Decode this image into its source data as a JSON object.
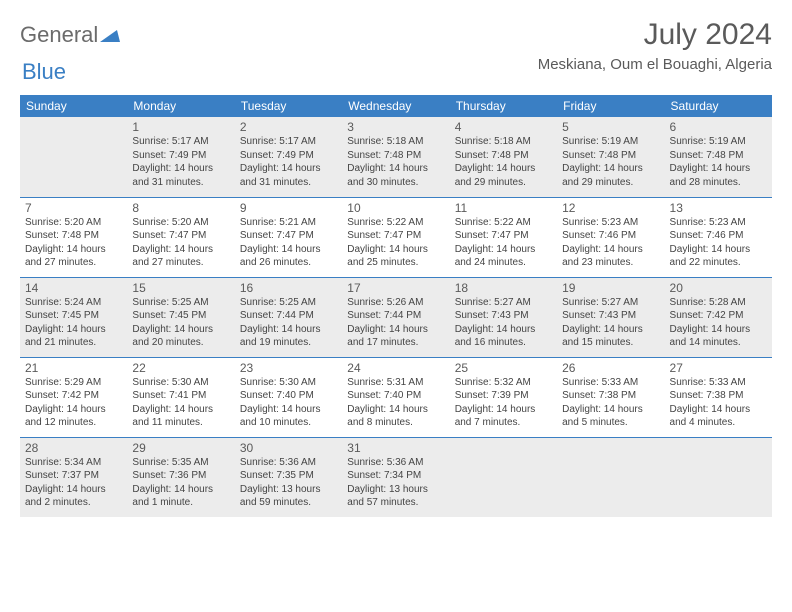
{
  "brand": {
    "part1": "General",
    "part2": "Blue"
  },
  "header": {
    "title": "July 2024",
    "location": "Meskiana, Oum el Bouaghi, Algeria"
  },
  "colors": {
    "accent": "#3a7fc4",
    "alt_bg": "#ececec",
    "text": "#444444"
  },
  "days_of_week": [
    "Sunday",
    "Monday",
    "Tuesday",
    "Wednesday",
    "Thursday",
    "Friday",
    "Saturday"
  ],
  "weeks": [
    [
      null,
      {
        "n": "1",
        "sr": "Sunrise: 5:17 AM",
        "ss": "Sunset: 7:49 PM",
        "d1": "Daylight: 14 hours",
        "d2": "and 31 minutes."
      },
      {
        "n": "2",
        "sr": "Sunrise: 5:17 AM",
        "ss": "Sunset: 7:49 PM",
        "d1": "Daylight: 14 hours",
        "d2": "and 31 minutes."
      },
      {
        "n": "3",
        "sr": "Sunrise: 5:18 AM",
        "ss": "Sunset: 7:48 PM",
        "d1": "Daylight: 14 hours",
        "d2": "and 30 minutes."
      },
      {
        "n": "4",
        "sr": "Sunrise: 5:18 AM",
        "ss": "Sunset: 7:48 PM",
        "d1": "Daylight: 14 hours",
        "d2": "and 29 minutes."
      },
      {
        "n": "5",
        "sr": "Sunrise: 5:19 AM",
        "ss": "Sunset: 7:48 PM",
        "d1": "Daylight: 14 hours",
        "d2": "and 29 minutes."
      },
      {
        "n": "6",
        "sr": "Sunrise: 5:19 AM",
        "ss": "Sunset: 7:48 PM",
        "d1": "Daylight: 14 hours",
        "d2": "and 28 minutes."
      }
    ],
    [
      {
        "n": "7",
        "sr": "Sunrise: 5:20 AM",
        "ss": "Sunset: 7:48 PM",
        "d1": "Daylight: 14 hours",
        "d2": "and 27 minutes."
      },
      {
        "n": "8",
        "sr": "Sunrise: 5:20 AM",
        "ss": "Sunset: 7:47 PM",
        "d1": "Daylight: 14 hours",
        "d2": "and 27 minutes."
      },
      {
        "n": "9",
        "sr": "Sunrise: 5:21 AM",
        "ss": "Sunset: 7:47 PM",
        "d1": "Daylight: 14 hours",
        "d2": "and 26 minutes."
      },
      {
        "n": "10",
        "sr": "Sunrise: 5:22 AM",
        "ss": "Sunset: 7:47 PM",
        "d1": "Daylight: 14 hours",
        "d2": "and 25 minutes."
      },
      {
        "n": "11",
        "sr": "Sunrise: 5:22 AM",
        "ss": "Sunset: 7:47 PM",
        "d1": "Daylight: 14 hours",
        "d2": "and 24 minutes."
      },
      {
        "n": "12",
        "sr": "Sunrise: 5:23 AM",
        "ss": "Sunset: 7:46 PM",
        "d1": "Daylight: 14 hours",
        "d2": "and 23 minutes."
      },
      {
        "n": "13",
        "sr": "Sunrise: 5:23 AM",
        "ss": "Sunset: 7:46 PM",
        "d1": "Daylight: 14 hours",
        "d2": "and 22 minutes."
      }
    ],
    [
      {
        "n": "14",
        "sr": "Sunrise: 5:24 AM",
        "ss": "Sunset: 7:45 PM",
        "d1": "Daylight: 14 hours",
        "d2": "and 21 minutes."
      },
      {
        "n": "15",
        "sr": "Sunrise: 5:25 AM",
        "ss": "Sunset: 7:45 PM",
        "d1": "Daylight: 14 hours",
        "d2": "and 20 minutes."
      },
      {
        "n": "16",
        "sr": "Sunrise: 5:25 AM",
        "ss": "Sunset: 7:44 PM",
        "d1": "Daylight: 14 hours",
        "d2": "and 19 minutes."
      },
      {
        "n": "17",
        "sr": "Sunrise: 5:26 AM",
        "ss": "Sunset: 7:44 PM",
        "d1": "Daylight: 14 hours",
        "d2": "and 17 minutes."
      },
      {
        "n": "18",
        "sr": "Sunrise: 5:27 AM",
        "ss": "Sunset: 7:43 PM",
        "d1": "Daylight: 14 hours",
        "d2": "and 16 minutes."
      },
      {
        "n": "19",
        "sr": "Sunrise: 5:27 AM",
        "ss": "Sunset: 7:43 PM",
        "d1": "Daylight: 14 hours",
        "d2": "and 15 minutes."
      },
      {
        "n": "20",
        "sr": "Sunrise: 5:28 AM",
        "ss": "Sunset: 7:42 PM",
        "d1": "Daylight: 14 hours",
        "d2": "and 14 minutes."
      }
    ],
    [
      {
        "n": "21",
        "sr": "Sunrise: 5:29 AM",
        "ss": "Sunset: 7:42 PM",
        "d1": "Daylight: 14 hours",
        "d2": "and 12 minutes."
      },
      {
        "n": "22",
        "sr": "Sunrise: 5:30 AM",
        "ss": "Sunset: 7:41 PM",
        "d1": "Daylight: 14 hours",
        "d2": "and 11 minutes."
      },
      {
        "n": "23",
        "sr": "Sunrise: 5:30 AM",
        "ss": "Sunset: 7:40 PM",
        "d1": "Daylight: 14 hours",
        "d2": "and 10 minutes."
      },
      {
        "n": "24",
        "sr": "Sunrise: 5:31 AM",
        "ss": "Sunset: 7:40 PM",
        "d1": "Daylight: 14 hours",
        "d2": "and 8 minutes."
      },
      {
        "n": "25",
        "sr": "Sunrise: 5:32 AM",
        "ss": "Sunset: 7:39 PM",
        "d1": "Daylight: 14 hours",
        "d2": "and 7 minutes."
      },
      {
        "n": "26",
        "sr": "Sunrise: 5:33 AM",
        "ss": "Sunset: 7:38 PM",
        "d1": "Daylight: 14 hours",
        "d2": "and 5 minutes."
      },
      {
        "n": "27",
        "sr": "Sunrise: 5:33 AM",
        "ss": "Sunset: 7:38 PM",
        "d1": "Daylight: 14 hours",
        "d2": "and 4 minutes."
      }
    ],
    [
      {
        "n": "28",
        "sr": "Sunrise: 5:34 AM",
        "ss": "Sunset: 7:37 PM",
        "d1": "Daylight: 14 hours",
        "d2": "and 2 minutes."
      },
      {
        "n": "29",
        "sr": "Sunrise: 5:35 AM",
        "ss": "Sunset: 7:36 PM",
        "d1": "Daylight: 14 hours",
        "d2": "and 1 minute."
      },
      {
        "n": "30",
        "sr": "Sunrise: 5:36 AM",
        "ss": "Sunset: 7:35 PM",
        "d1": "Daylight: 13 hours",
        "d2": "and 59 minutes."
      },
      {
        "n": "31",
        "sr": "Sunrise: 5:36 AM",
        "ss": "Sunset: 7:34 PM",
        "d1": "Daylight: 13 hours",
        "d2": "and 57 minutes."
      },
      null,
      null,
      null
    ]
  ]
}
